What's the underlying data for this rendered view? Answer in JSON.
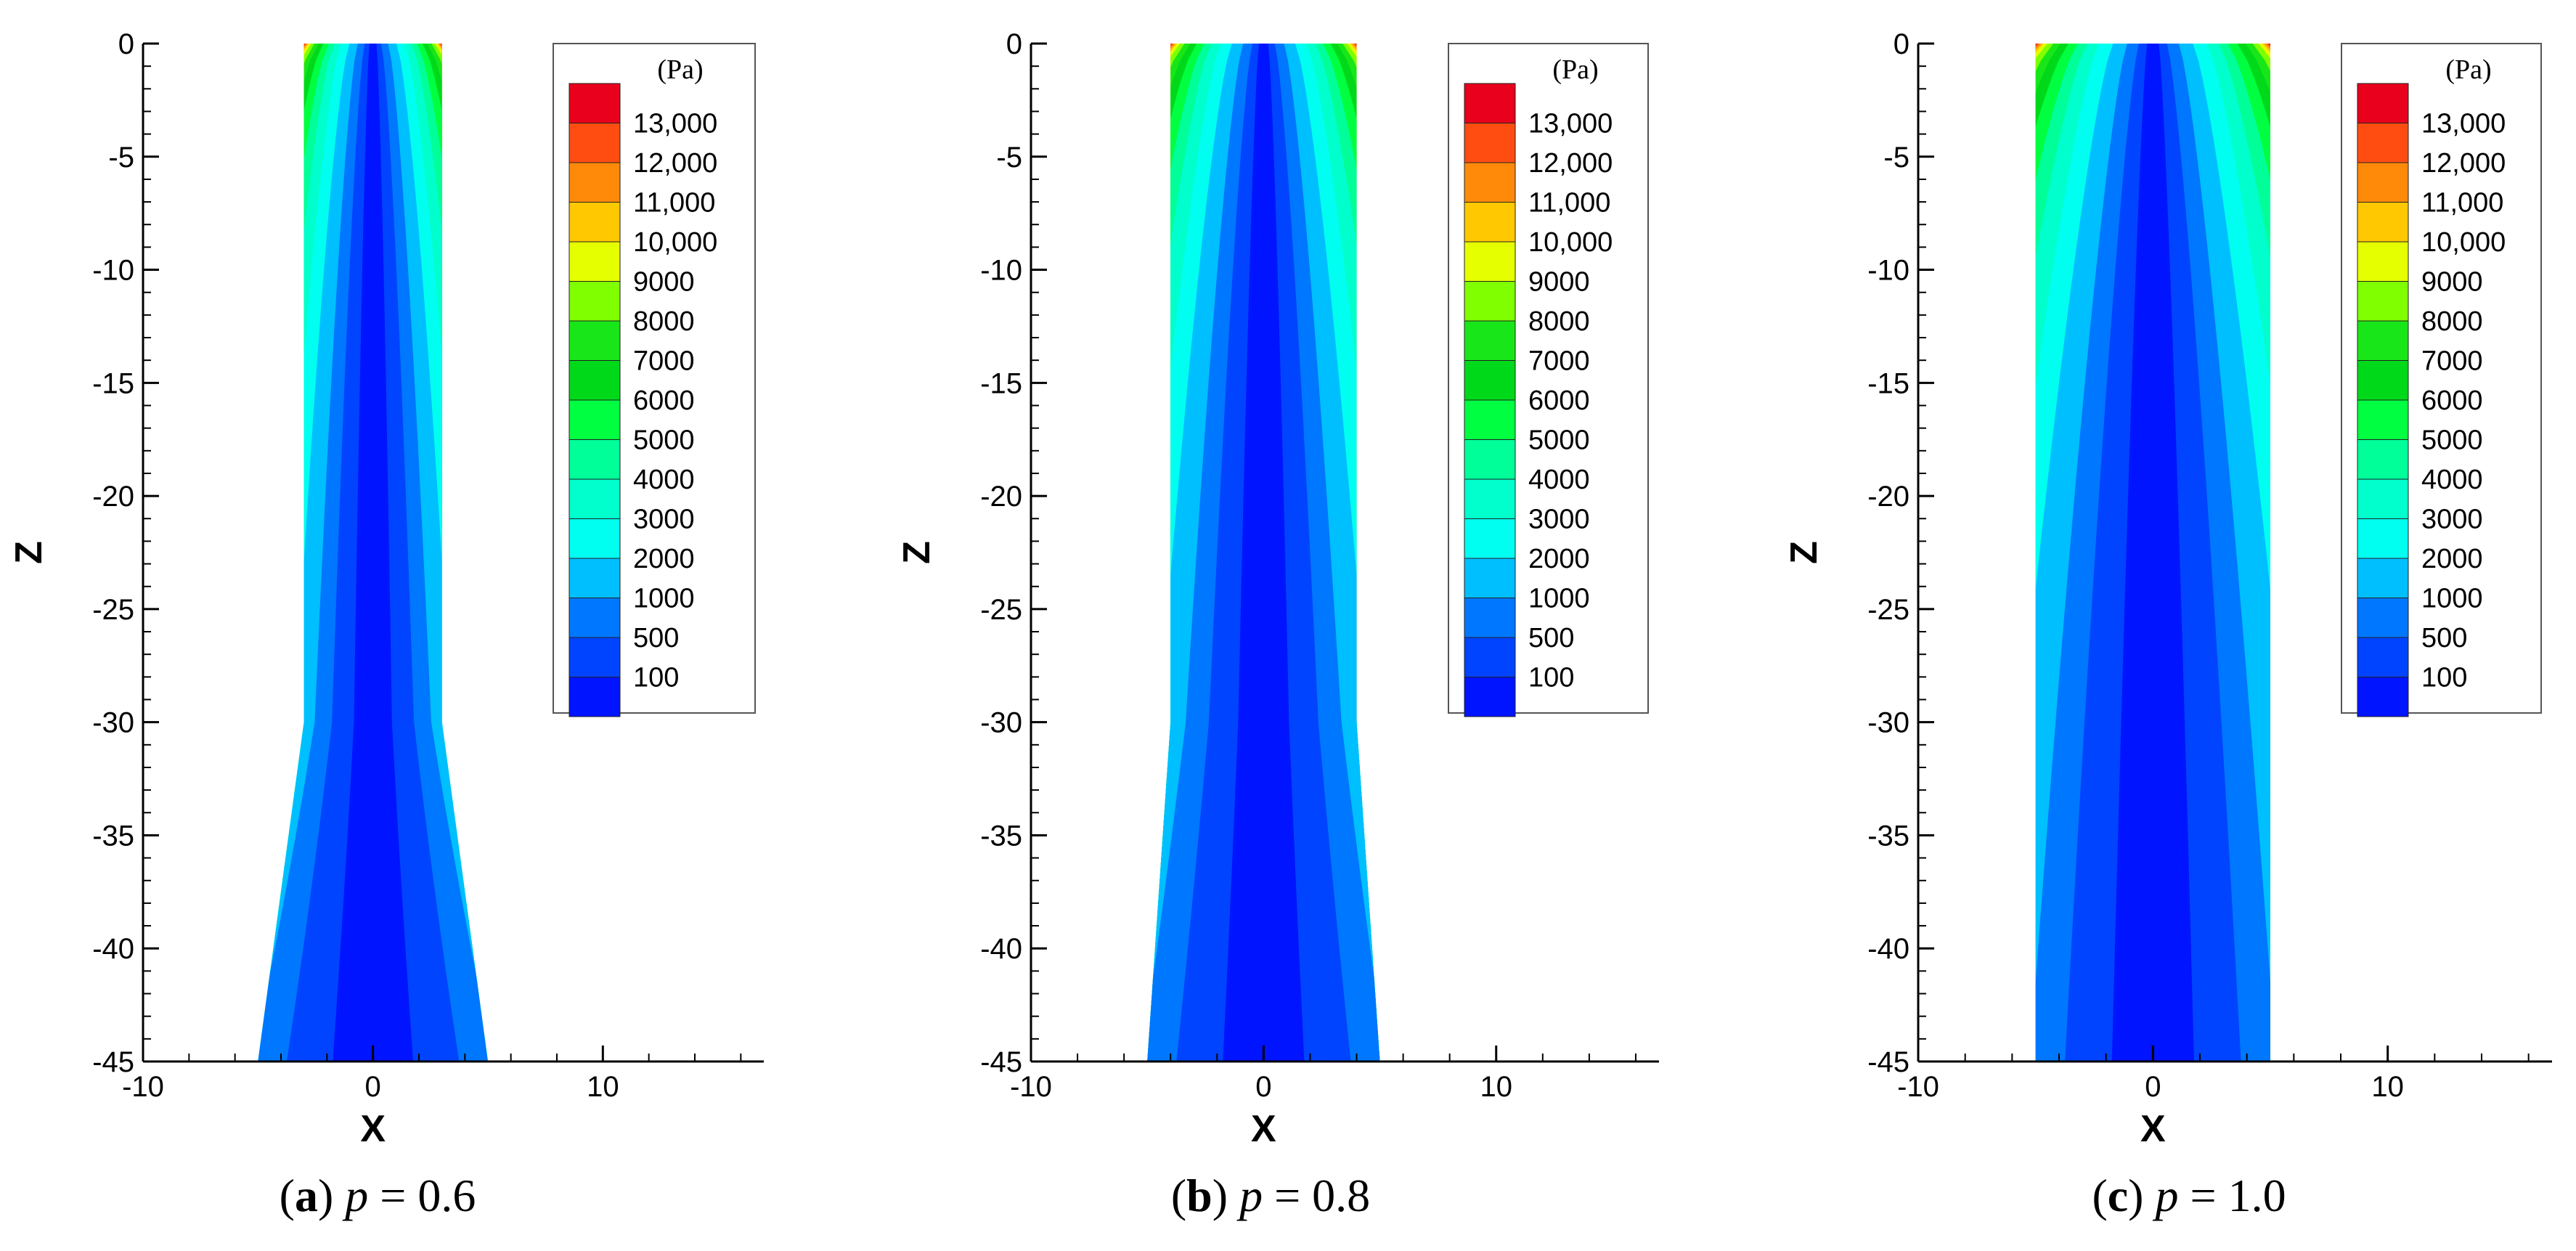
{
  "chart_data": [
    {
      "type": "heatmap",
      "subtitle_letter": "a",
      "subtitle_param": "p",
      "subtitle_value": "= 0.6",
      "p": 0.6,
      "xlabel": "X",
      "ylabel": "Z",
      "xlim": [
        -10,
        17
      ],
      "ylim": [
        -45,
        0
      ],
      "xticks": [
        -10,
        0,
        10
      ],
      "yticks": [
        0,
        -5,
        -10,
        -15,
        -20,
        -25,
        -30,
        -35,
        -40,
        -45
      ],
      "domain_outline": [
        [
          -3,
          0
        ],
        [
          3,
          0
        ],
        [
          3,
          -30
        ],
        [
          5,
          -45
        ],
        [
          -5,
          -45
        ],
        [
          -3,
          -30
        ]
      ],
      "legend_unit": "(Pa)",
      "levels": [
        "13,000",
        "12,000",
        "11,000",
        "10,000",
        "9000",
        "8000",
        "7000",
        "6000",
        "5000",
        "4000",
        "3000",
        "2000",
        "1000",
        "500",
        "100"
      ],
      "level_colors": [
        "#e8001c",
        "#ff4d12",
        "#ff8a0a",
        "#ffc800",
        "#e6ff00",
        "#80ff00",
        "#19e619",
        "#00d91a",
        "#00ff40",
        "#00ff99",
        "#00ffcc",
        "#00fff0",
        "#00bfff",
        "#0077ff",
        "#0044ff",
        "#0014ff"
      ]
    },
    {
      "type": "heatmap",
      "subtitle_letter": "b",
      "subtitle_param": "p",
      "subtitle_value": "= 0.8",
      "p": 0.8,
      "xlabel": "X",
      "ylabel": "Z",
      "xlim": [
        -10,
        17
      ],
      "ylim": [
        -45,
        0
      ],
      "xticks": [
        -10,
        0,
        10
      ],
      "yticks": [
        0,
        -5,
        -10,
        -15,
        -20,
        -25,
        -30,
        -35,
        -40,
        -45
      ],
      "domain_outline": [
        [
          -4,
          0
        ],
        [
          4,
          0
        ],
        [
          4,
          -30
        ],
        [
          5,
          -45
        ],
        [
          -5,
          -45
        ],
        [
          -4,
          -30
        ]
      ],
      "legend_unit": "(Pa)",
      "levels": [
        "13,000",
        "12,000",
        "11,000",
        "10,000",
        "9000",
        "8000",
        "7000",
        "6000",
        "5000",
        "4000",
        "3000",
        "2000",
        "1000",
        "500",
        "100"
      ],
      "level_colors": [
        "#e8001c",
        "#ff4d12",
        "#ff8a0a",
        "#ffc800",
        "#e6ff00",
        "#80ff00",
        "#19e619",
        "#00d91a",
        "#00ff40",
        "#00ff99",
        "#00ffcc",
        "#00fff0",
        "#00bfff",
        "#0077ff",
        "#0044ff",
        "#0014ff"
      ]
    },
    {
      "type": "heatmap",
      "subtitle_letter": "c",
      "subtitle_param": "p",
      "subtitle_value": "= 1.0",
      "p": 1.0,
      "xlabel": "X",
      "ylabel": "Z",
      "xlim": [
        -10,
        17
      ],
      "ylim": [
        -45,
        0
      ],
      "xticks": [
        -10,
        0,
        10
      ],
      "yticks": [
        0,
        -5,
        -10,
        -15,
        -20,
        -25,
        -30,
        -35,
        -40,
        -45
      ],
      "domain_outline": [
        [
          -5,
          0
        ],
        [
          5,
          0
        ],
        [
          5,
          -45
        ],
        [
          -5,
          -45
        ]
      ],
      "legend_unit": "(Pa)",
      "levels": [
        "13,000",
        "12,000",
        "11,000",
        "10,000",
        "9000",
        "8000",
        "7000",
        "6000",
        "5000",
        "4000",
        "3000",
        "2000",
        "1000",
        "500",
        "100"
      ],
      "level_colors": [
        "#e8001c",
        "#ff4d12",
        "#ff8a0a",
        "#ffc800",
        "#e6ff00",
        "#80ff00",
        "#19e619",
        "#00d91a",
        "#00ff40",
        "#00ff99",
        "#00ffcc",
        "#00fff0",
        "#00bfff",
        "#0077ff",
        "#0044ff",
        "#0014ff"
      ]
    }
  ]
}
